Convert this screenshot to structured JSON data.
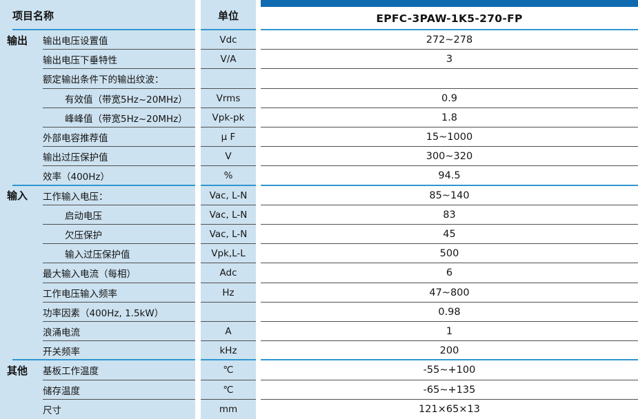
{
  "table": {
    "header": {
      "item_col": "项目名称",
      "unit_col": "单位",
      "model_col": "EPFC-3PAW-1K5-270-FP"
    },
    "sections": [
      {
        "category": "输出",
        "rows": [
          {
            "item": "输出电压设置值",
            "unit": "Vdc",
            "value": "272~278",
            "indent": 0
          },
          {
            "item": "输出电压下垂特性",
            "unit": "V/A",
            "value": "3",
            "indent": 0
          },
          {
            "item": "额定输出条件下的输出纹波：",
            "unit": "",
            "value": "",
            "indent": 0
          },
          {
            "item": "有效值（带宽5Hz~20MHz）",
            "unit": "Vrms",
            "value": "0.9",
            "indent": 1
          },
          {
            "item": "峰峰值（带宽5Hz~20MHz）",
            "unit": "Vpk-pk",
            "value": "1.8",
            "indent": 1
          },
          {
            "item": "外部电容推荐值",
            "unit": "μ F",
            "value": "15~1000",
            "indent": 0
          },
          {
            "item": "输出过压保护值",
            "unit": "V",
            "value": "300~320",
            "indent": 0
          },
          {
            "item": "效率（400Hz）",
            "unit": "%",
            "value": "94.5",
            "indent": 0
          }
        ]
      },
      {
        "category": "输入",
        "rows": [
          {
            "item": "工作输入电压：",
            "unit": "Vac, L-N",
            "value": "85~140",
            "indent": 0
          },
          {
            "item": "启动电压",
            "unit": "Vac, L-N",
            "value": "83",
            "indent": 1
          },
          {
            "item": "欠压保护",
            "unit": "Vac, L-N",
            "value": "45",
            "indent": 1
          },
          {
            "item": "输入过压保护值",
            "unit": "Vpk,L-L",
            "value": "500",
            "indent": 1
          },
          {
            "item": "最大输入电流（每相）",
            "unit": "Adc",
            "value": "6",
            "indent": 0
          },
          {
            "item": "工作电压输入频率",
            "unit": "Hz",
            "value": "47~800",
            "indent": 0
          },
          {
            "item": "功率因素（400Hz, 1.5kW）",
            "unit": "",
            "value": "0.98",
            "indent": 0
          },
          {
            "item": "浪涌电流",
            "unit": "A",
            "value": "1",
            "indent": 0
          },
          {
            "item": "开关频率",
            "unit": "kHz",
            "value": "200",
            "indent": 0
          }
        ]
      },
      {
        "category": "其他",
        "rows": [
          {
            "item": "基板工作温度",
            "unit": "℃",
            "value": "-55~+100",
            "indent": 0
          },
          {
            "item": "储存温度",
            "unit": "℃",
            "value": "-65~+135",
            "indent": 0
          },
          {
            "item": "尺寸",
            "unit": "mm",
            "value": "121×65×13",
            "indent": 0
          }
        ]
      }
    ],
    "colors": {
      "panel_bg": "#cde2f0",
      "top_bar": "#0f6ab0",
      "blue_line": "#2e96d1",
      "gray_line": "#4f4f4f",
      "text": "#141414"
    }
  }
}
